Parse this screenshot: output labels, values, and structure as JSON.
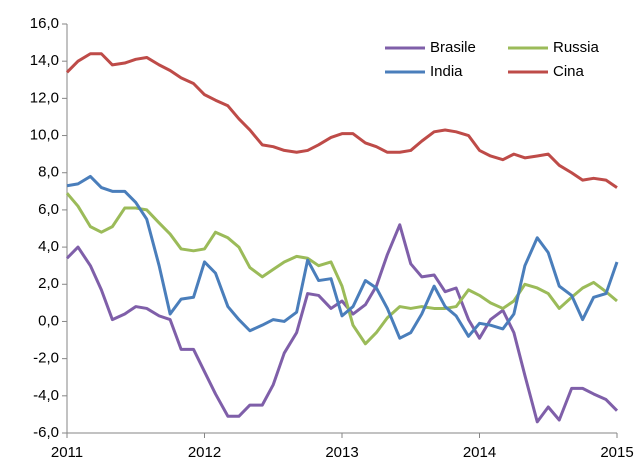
{
  "chart_data": {
    "type": "line",
    "x": [
      2011,
      2011.08,
      2011.17,
      2011.25,
      2011.33,
      2011.42,
      2011.5,
      2011.58,
      2011.67,
      2011.75,
      2011.83,
      2011.92,
      2012,
      2012.08,
      2012.17,
      2012.25,
      2012.33,
      2012.42,
      2012.5,
      2012.58,
      2012.67,
      2012.75,
      2012.83,
      2012.92,
      2013,
      2013.08,
      2013.17,
      2013.25,
      2013.33,
      2013.42,
      2013.5,
      2013.58,
      2013.67,
      2013.75,
      2013.83,
      2013.92,
      2014,
      2014.08,
      2014.17,
      2014.25,
      2014.33,
      2014.42,
      2014.5,
      2014.58,
      2014.67,
      2014.75,
      2014.83,
      2014.92,
      2015
    ],
    "series": [
      {
        "name": "Brasile",
        "color": "#7f5fa9",
        "values": [
          3.4,
          4.0,
          3.0,
          1.7,
          0.1,
          0.4,
          0.8,
          0.7,
          0.3,
          0.1,
          -1.5,
          -1.5,
          -2.7,
          -3.9,
          -5.1,
          -5.1,
          -4.5,
          -4.5,
          -3.4,
          -1.7,
          -0.6,
          1.5,
          1.4,
          0.7,
          1.1,
          0.4,
          0.9,
          1.9,
          3.6,
          5.2,
          3.1,
          2.4,
          2.5,
          1.6,
          1.8,
          0.1,
          -0.9,
          0.1,
          0.6,
          -0.6,
          -2.9,
          -5.4,
          -4.6,
          -5.3,
          -3.6,
          -3.6,
          -3.9,
          -4.2,
          -4.8
        ]
      },
      {
        "name": "Russia",
        "color": "#9bbb59",
        "values": [
          6.9,
          6.2,
          5.1,
          4.8,
          5.1,
          6.1,
          6.1,
          6.0,
          5.3,
          4.7,
          3.9,
          3.8,
          3.9,
          4.8,
          4.5,
          4.0,
          2.9,
          2.4,
          2.8,
          3.2,
          3.5,
          3.4,
          3.0,
          3.2,
          1.9,
          -0.2,
          -1.2,
          -0.6,
          0.2,
          0.8,
          0.7,
          0.8,
          0.7,
          0.7,
          0.8,
          1.7,
          1.4,
          1.0,
          0.7,
          1.1,
          2.0,
          1.8,
          1.5,
          0.7,
          1.3,
          1.8,
          2.1,
          1.6,
          1.1
        ]
      },
      {
        "name": "India",
        "color": "#4a7ebb",
        "values": [
          7.3,
          7.4,
          7.8,
          7.2,
          7.0,
          7.0,
          6.4,
          5.5,
          3.0,
          0.4,
          1.2,
          1.3,
          3.2,
          2.6,
          0.8,
          0.1,
          -0.5,
          -0.2,
          0.1,
          0.0,
          0.5,
          3.3,
          2.2,
          2.3,
          0.3,
          0.8,
          2.2,
          1.8,
          0.7,
          -0.9,
          -0.6,
          0.4,
          1.9,
          0.8,
          0.3,
          -0.8,
          -0.1,
          -0.2,
          -0.4,
          0.4,
          3.0,
          4.5,
          3.7,
          1.9,
          1.4,
          0.1,
          1.3,
          1.5,
          3.2
        ]
      },
      {
        "name": "Cina",
        "color": "#be4b48",
        "values": [
          13.4,
          14.0,
          14.4,
          14.4,
          13.8,
          13.9,
          14.1,
          14.2,
          13.8,
          13.5,
          13.1,
          12.8,
          12.2,
          11.9,
          11.6,
          10.9,
          10.3,
          9.5,
          9.4,
          9.2,
          9.1,
          9.2,
          9.5,
          9.9,
          10.1,
          10.1,
          9.6,
          9.4,
          9.1,
          9.1,
          9.2,
          9.7,
          10.2,
          10.3,
          10.2,
          10.0,
          9.2,
          8.9,
          8.7,
          9.0,
          8.8,
          8.9,
          9.0,
          8.4,
          8.0,
          7.6,
          7.7,
          7.6,
          7.2
        ]
      }
    ],
    "xlim": [
      2011,
      2015
    ],
    "xticks": [
      2011,
      2012,
      2013,
      2014,
      2015
    ],
    "ylim": [
      -6,
      16
    ],
    "yticks": [
      {
        "value": -6,
        "label": "-6,0"
      },
      {
        "value": -4,
        "label": "-4,0"
      },
      {
        "value": -2,
        "label": "-2,0"
      },
      {
        "value": 0,
        "label": "0,0"
      },
      {
        "value": 2,
        "label": "2,0"
      },
      {
        "value": 4,
        "label": "4,0"
      },
      {
        "value": 6,
        "label": "6,0"
      },
      {
        "value": 8,
        "label": "8,0"
      },
      {
        "value": 10,
        "label": "10,0"
      },
      {
        "value": 12,
        "label": "12,0"
      },
      {
        "value": 14,
        "label": "14,0"
      },
      {
        "value": 16,
        "label": "16,0"
      }
    ],
    "grid": false,
    "legend": "top-right"
  }
}
